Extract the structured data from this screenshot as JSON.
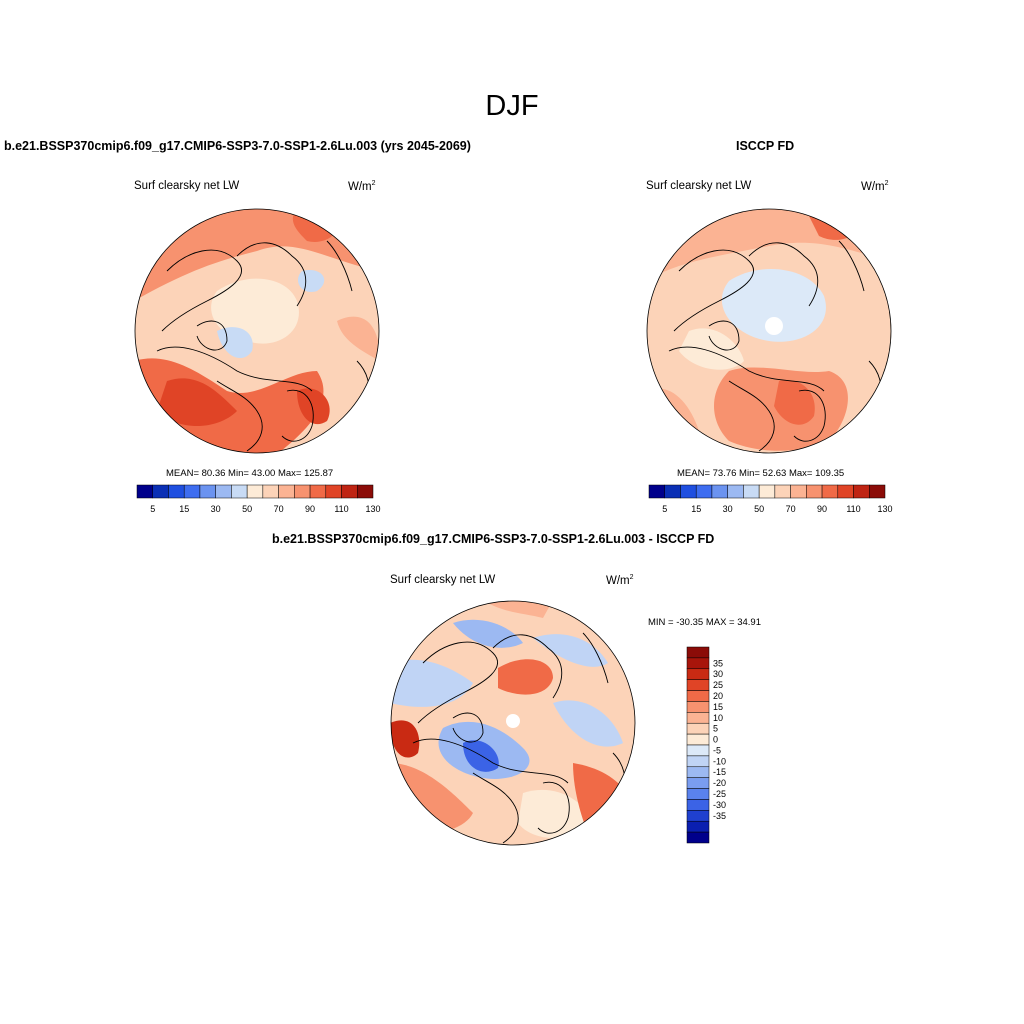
{
  "title": "DJF",
  "panels": [
    {
      "id": "model",
      "title": "b.e21.BSSP370cmip6.f09_g17.CMIP6-SSP3-7.0-SSP1-2.6Lu.003 (yrs 2045-2069)",
      "left_label": "Surf clearsky net LW",
      "units_base": "W/m",
      "units_exp": "2",
      "stats": "MEAN=  80.36  Min=  43.00  Max= 125.87"
    },
    {
      "id": "obs",
      "title": "ISCCP FD",
      "left_label": "Surf clearsky net LW",
      "units_base": "W/m",
      "units_exp": "2",
      "stats": "MEAN=  73.76  Min=  52.63  Max= 109.35"
    },
    {
      "id": "diff",
      "title": "b.e21.BSSP370cmip6.f09_g17.CMIP6-SSP3-7.0-SSP1-2.6Lu.003 - ISCCP FD",
      "left_label": "Surf clearsky net LW",
      "units_base": "W/m",
      "units_exp": "2",
      "stats": "MIN = -30.35 MAX =  34.91"
    }
  ],
  "colorbar_abs": {
    "colors": [
      "#00008b",
      "#0a2fb5",
      "#1f4fe0",
      "#3e6df0",
      "#6b93f0",
      "#9cb9f2",
      "#c8dbf5",
      "#fdebd7",
      "#fcd3b8",
      "#fbb393",
      "#f7926f",
      "#f06a47",
      "#e04426",
      "#bf2413",
      "#8b0c08"
    ],
    "tick_labels": [
      "5",
      "15",
      "30",
      "50",
      "70",
      "90",
      "110",
      "130"
    ]
  },
  "colorbar_diff": {
    "colors": [
      "#8b0c08",
      "#a8150b",
      "#c92a13",
      "#e04426",
      "#f06a47",
      "#f7926f",
      "#fbb393",
      "#fcd3b8",
      "#fdebd7",
      "#dce9f8",
      "#c0d4f5",
      "#9cb9f2",
      "#7a9df0",
      "#5a82ed",
      "#3b63e6",
      "#1f40cf",
      "#0a1fb0",
      "#00008b"
    ],
    "tick_labels": [
      "35",
      "30",
      "25",
      "20",
      "15",
      "10",
      "5",
      "0",
      "-5",
      "-10",
      "-15",
      "-20",
      "-25",
      "-30",
      "-35"
    ]
  },
  "chart_data": [
    {
      "type": "heatmap",
      "projection": "north polar stereographic",
      "variable": "Surf clearsky net LW",
      "units": "W/m2",
      "mean": 80.36,
      "min": 43.0,
      "max": 125.87,
      "levels": [
        5,
        10,
        15,
        20,
        30,
        40,
        50,
        60,
        70,
        80,
        90,
        100,
        110,
        120,
        130
      ]
    },
    {
      "type": "heatmap",
      "projection": "north polar stereographic",
      "variable": "Surf clearsky net LW",
      "units": "W/m2",
      "mean": 73.76,
      "min": 52.63,
      "max": 109.35,
      "levels": [
        5,
        10,
        15,
        20,
        30,
        40,
        50,
        60,
        70,
        80,
        90,
        100,
        110,
        120,
        130
      ]
    },
    {
      "type": "heatmap",
      "projection": "north polar stereographic",
      "variable": "Surf clearsky net LW",
      "units": "W/m2",
      "min": -30.35,
      "max": 34.91,
      "levels": [
        -35,
        -30,
        -25,
        -20,
        -15,
        -10,
        -5,
        0,
        5,
        10,
        15,
        20,
        25,
        30,
        35
      ]
    }
  ]
}
